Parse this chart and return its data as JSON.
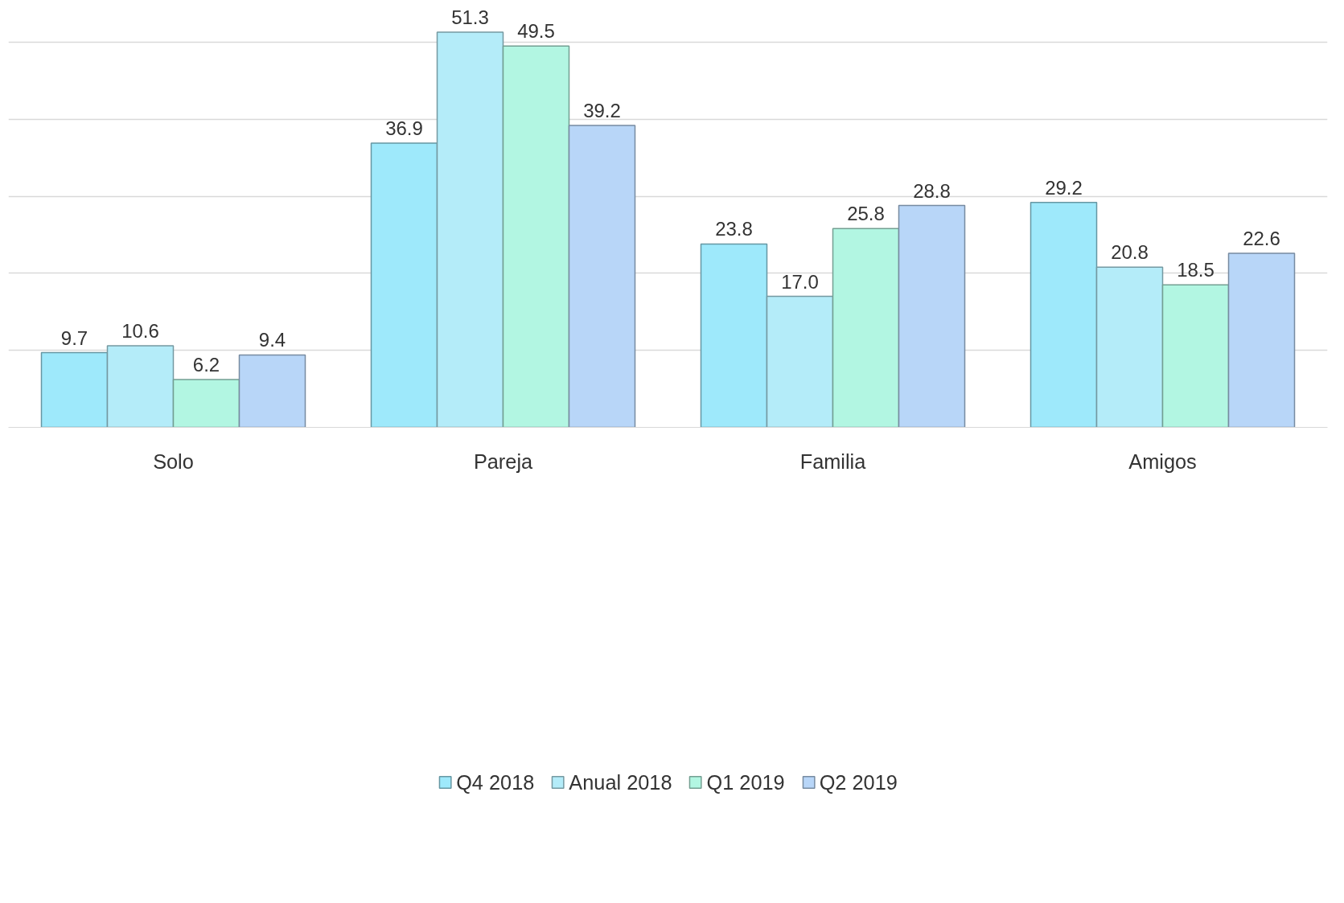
{
  "chart_data": {
    "type": "bar",
    "categories": [
      "Solo",
      "Pareja",
      "Familia",
      "Amigos"
    ],
    "series": [
      {
        "name": "Q4 2018",
        "color": "#9ee9fb",
        "values": [
          9.7,
          36.9,
          23.8,
          29.2
        ],
        "value_labels": [
          "9.7",
          "36.9",
          "23.8",
          "29.2"
        ]
      },
      {
        "name": "Anual 2018",
        "color": "#b4ecf9",
        "values": [
          10.6,
          51.3,
          17.0,
          20.8
        ],
        "value_labels": [
          "10.6",
          "51.3",
          "17.0",
          "20.8"
        ]
      },
      {
        "name": "Q1 2019",
        "color": "#b2f6e2",
        "values": [
          6.2,
          49.5,
          25.8,
          18.5
        ],
        "value_labels": [
          "6.2",
          "49.5",
          "25.8",
          "18.5"
        ]
      },
      {
        "name": "Q2 2019",
        "color": "#b8d6f8",
        "values": [
          9.4,
          39.2,
          28.8,
          22.6
        ],
        "value_labels": [
          "9.4",
          "39.2",
          "28.8",
          "22.6"
        ]
      }
    ],
    "grid": "y",
    "legend": "bottom",
    "tick_labels": "x"
  }
}
